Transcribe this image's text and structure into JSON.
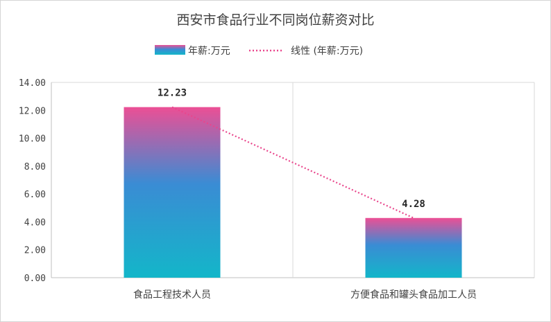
{
  "chart_data": {
    "type": "bar",
    "title": "西安市食品行业不同岗位薪资对比",
    "categories": [
      "食品工程技术人员",
      "方便食品和罐头食品加工人员"
    ],
    "series": [
      {
        "name": "年薪:万元",
        "values": [
          12.23,
          4.28
        ]
      }
    ],
    "trendline": {
      "name": "线性 (年薪:万元)",
      "type": "linear"
    },
    "data_labels": [
      "12.23",
      "4.28"
    ],
    "y_ticks": [
      "0.00",
      "2.00",
      "4.00",
      "6.00",
      "8.00",
      "10.00",
      "12.00",
      "14.00"
    ],
    "ylim": [
      0,
      14
    ],
    "xlabel": "",
    "ylabel": "",
    "grid": "vertical category separators",
    "legend_position": "top",
    "colors": {
      "bar_top": "#ec4f95",
      "bar_mid": "#3a8cd4",
      "bar_bottom": "#13b6c9",
      "trendline": "#e9468c",
      "axis": "#bfbfbf"
    }
  }
}
